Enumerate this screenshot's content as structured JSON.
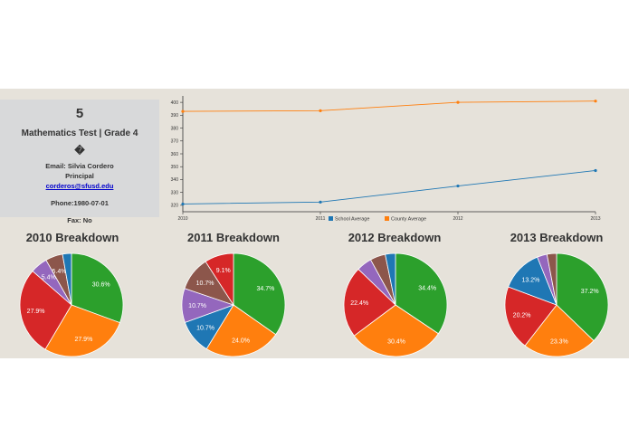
{
  "info": {
    "number": "5",
    "title": "Mathematics Test | Grade 4",
    "glyph": "�",
    "email_line": "Email: Silvia Cordero",
    "role": "Principal",
    "email_link": "corderos@sfusd.edu",
    "phone": "Phone:1980-07-01",
    "fax": "Fax: No"
  },
  "colors": {
    "school": "#1f77b4",
    "county": "#ff7f0e",
    "green": "#2ca02c",
    "orange": "#ff7f0e",
    "red": "#d62728",
    "purple": "#9467bd",
    "brown": "#8c564b",
    "blue": "#1f77b4"
  },
  "chart_data": [
    {
      "type": "line",
      "x": [
        "2010",
        "2011",
        "2012",
        "2013"
      ],
      "y_ticks": [
        "320",
        "330",
        "340",
        "350",
        "360",
        "370",
        "380",
        "390",
        "400"
      ],
      "ylim": [
        315,
        405
      ],
      "series": [
        {
          "name": "School Average",
          "values": [
            321,
            322.5,
            335,
            347
          ]
        },
        {
          "name": "County Average",
          "values": [
            393,
            393.5,
            400,
            401
          ]
        }
      ],
      "legend": "bottom"
    },
    {
      "type": "pie",
      "title": "2010 Breakdown",
      "slices": [
        {
          "value": 30.6,
          "label": "30.6%",
          "color": "green"
        },
        {
          "value": 27.9,
          "label": "27.9%",
          "color": "orange"
        },
        {
          "value": 27.9,
          "label": "27.9%",
          "color": "red"
        },
        {
          "value": 5.4,
          "label": "5.4%",
          "color": "purple"
        },
        {
          "value": 5.4,
          "label": "5.4%",
          "color": "brown"
        },
        {
          "value": 2.8,
          "label": "",
          "color": "blue"
        }
      ]
    },
    {
      "type": "pie",
      "title": "2011 Breakdown",
      "slices": [
        {
          "value": 34.7,
          "label": "34.7%",
          "color": "green"
        },
        {
          "value": 24.0,
          "label": "24.0%",
          "color": "orange"
        },
        {
          "value": 10.7,
          "label": "10.7%",
          "color": "blue"
        },
        {
          "value": 10.7,
          "label": "10.7%",
          "color": "purple"
        },
        {
          "value": 10.7,
          "label": "10.7%",
          "color": "brown"
        },
        {
          "value": 9.1,
          "label": "9.1%",
          "color": "red"
        }
      ]
    },
    {
      "type": "pie",
      "title": "2012 Breakdown",
      "slices": [
        {
          "value": 34.4,
          "label": "34.4%",
          "color": "green"
        },
        {
          "value": 30.4,
          "label": "30.4%",
          "color": "orange"
        },
        {
          "value": 22.4,
          "label": "22.4%",
          "color": "red"
        },
        {
          "value": 4.8,
          "label": "",
          "color": "purple"
        },
        {
          "value": 4.8,
          "label": "",
          "color": "brown"
        },
        {
          "value": 3.2,
          "label": "",
          "color": "blue"
        }
      ]
    },
    {
      "type": "pie",
      "title": "2013 Breakdown",
      "slices": [
        {
          "value": 37.2,
          "label": "37.2%",
          "color": "green"
        },
        {
          "value": 23.3,
          "label": "23.3%",
          "color": "orange"
        },
        {
          "value": 20.2,
          "label": "20.2%",
          "color": "red"
        },
        {
          "value": 13.2,
          "label": "13.2%",
          "color": "blue"
        },
        {
          "value": 3.1,
          "label": "",
          "color": "purple"
        },
        {
          "value": 3.0,
          "label": "",
          "color": "brown"
        }
      ]
    }
  ]
}
